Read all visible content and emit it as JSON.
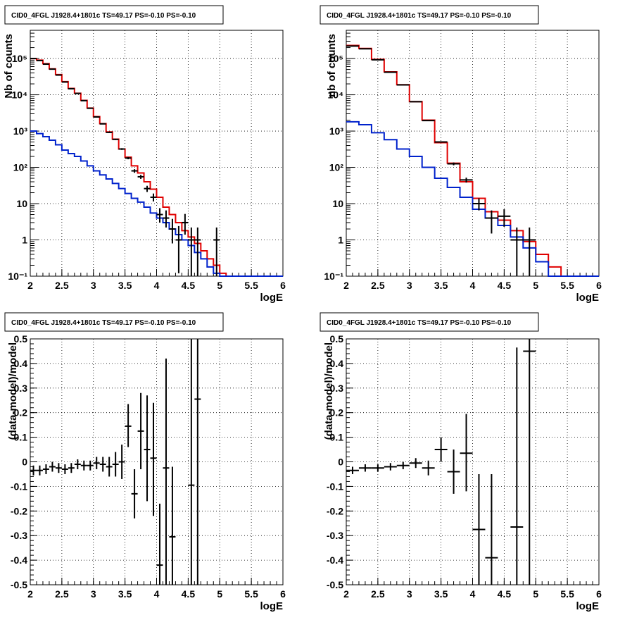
{
  "colors": {
    "data": "#000000",
    "model_total": "#e00000",
    "model_source": "#0022cc",
    "grid": "#000000"
  },
  "chart_data": [
    {
      "type": "line",
      "title": "CID0_4FGL J1928.4+1801c TS=49.17 PS=-0.10 PS=-0.10",
      "xlabel": "logE",
      "ylabel": "Nb of counts",
      "yscale": "log",
      "xlim": [
        2,
        6
      ],
      "ylim": [
        0.1,
        600000
      ],
      "xticks": [
        "2",
        "2.5",
        "3",
        "3.5",
        "4",
        "4.5",
        "5",
        "5.5",
        "6"
      ],
      "yticks": [
        "10⁻¹",
        "1",
        "10",
        "10²",
        "10³",
        "10⁴",
        "10⁵"
      ],
      "grid": true,
      "bin_edges": [
        2.0,
        2.1,
        2.2,
        2.3,
        2.4,
        2.5,
        2.6,
        2.7,
        2.8,
        2.9,
        3.0,
        3.1,
        3.2,
        3.3,
        3.4,
        3.5,
        3.6,
        3.7,
        3.8,
        3.9,
        4.0,
        4.1,
        4.2,
        4.3,
        4.4,
        4.5,
        4.6,
        4.7,
        4.8,
        4.9,
        5.0,
        5.1,
        5.2,
        5.3,
        5.4,
        5.5,
        5.6,
        5.7,
        5.8,
        5.9,
        6.0
      ],
      "series": [
        {
          "values": [
            100000,
            90000,
            72000,
            52000,
            36000,
            23000,
            15000,
            11000,
            7000,
            4300,
            2500,
            1600,
            950,
            600,
            320,
            190,
            110,
            70,
            40,
            25,
            15,
            8,
            5,
            3,
            1.8,
            1.2,
            0.8,
            0.5,
            0.3,
            0.2,
            0.12,
            0.1,
            0.1,
            0.1,
            0.1,
            0.1,
            0.1,
            0.1,
            0.1,
            0.1
          ]
        },
        {
          "values": [
            1000,
            850,
            700,
            560,
            420,
            300,
            240,
            200,
            150,
            110,
            80,
            62,
            48,
            36,
            26,
            19,
            14,
            11,
            8,
            5.5,
            4,
            3,
            2,
            1.4,
            1,
            0.7,
            0.45,
            0.3,
            0.18,
            0.12,
            0.1,
            0.1,
            0.1,
            0.1,
            0.1,
            0.1,
            0.1,
            0.1,
            0.1,
            0.1
          ]
        },
        {
          "points": [
            {
              "x": 2.05,
              "y": 100000,
              "lo": 99500,
              "hi": 100500
            },
            {
              "x": 2.15,
              "y": 88000,
              "lo": 87600,
              "hi": 88400
            },
            {
              "x": 2.25,
              "y": 70000,
              "lo": 69600,
              "hi": 70400
            },
            {
              "x": 2.35,
              "y": 51000,
              "lo": 50700,
              "hi": 51300
            },
            {
              "x": 2.45,
              "y": 35000,
              "lo": 34800,
              "hi": 35200
            },
            {
              "x": 2.55,
              "y": 22500,
              "lo": 22300,
              "hi": 22700
            },
            {
              "x": 2.65,
              "y": 14700,
              "lo": 14500,
              "hi": 14900
            },
            {
              "x": 2.75,
              "y": 10900,
              "lo": 10700,
              "hi": 11100
            },
            {
              "x": 2.85,
              "y": 6900,
              "lo": 6800,
              "hi": 7000
            },
            {
              "x": 2.95,
              "y": 4250,
              "lo": 4180,
              "hi": 4320
            },
            {
              "x": 3.05,
              "y": 2450,
              "lo": 2400,
              "hi": 2500
            },
            {
              "x": 3.15,
              "y": 1580,
              "lo": 1540,
              "hi": 1620
            },
            {
              "x": 3.25,
              "y": 920,
              "lo": 890,
              "hi": 950
            },
            {
              "x": 3.35,
              "y": 590,
              "lo": 565,
              "hi": 615
            },
            {
              "x": 3.45,
              "y": 320,
              "lo": 302,
              "hi": 338
            },
            {
              "x": 3.55,
              "y": 180,
              "lo": 167,
              "hi": 193
            },
            {
              "x": 3.65,
              "y": 80,
              "lo": 71,
              "hi": 89
            },
            {
              "x": 3.75,
              "y": 55,
              "lo": 48,
              "hi": 62
            },
            {
              "x": 3.85,
              "y": 26,
              "lo": 21,
              "hi": 31
            },
            {
              "x": 3.95,
              "y": 15,
              "lo": 11.5,
              "hi": 19
            },
            {
              "x": 4.05,
              "y": 5,
              "lo": 3,
              "hi": 7.5
            },
            {
              "x": 4.15,
              "y": 4,
              "lo": 2.2,
              "hi": 6.5
            },
            {
              "x": 4.25,
              "y": 2,
              "lo": 0.8,
              "hi": 3.8
            },
            {
              "x": 4.35,
              "y": 1,
              "lo": 0.12,
              "hi": 2.4
            },
            {
              "x": 4.45,
              "y": 3,
              "lo": 1.4,
              "hi": 5.2
            },
            {
              "x": 4.55,
              "y": 1,
              "lo": 0.1,
              "hi": 2.2
            },
            {
              "x": 4.65,
              "y": 1,
              "lo": 0.1,
              "hi": 2.2
            },
            {
              "x": 4.95,
              "y": 1,
              "lo": 0.1,
              "hi": 2.2
            }
          ]
        }
      ]
    },
    {
      "type": "line",
      "title": "CID0_4FGL J1928.4+1801c TS=49.17 PS=-0.10 PS=-0.10",
      "xlabel": "logE",
      "ylabel": "nb of counts",
      "yscale": "log",
      "xlim": [
        2,
        6
      ],
      "ylim": [
        0.1,
        600000
      ],
      "xticks": [
        "2",
        "2.5",
        "3",
        "3.5",
        "4",
        "4.5",
        "5",
        "5.5",
        "6"
      ],
      "yticks": [
        "10⁻¹",
        "1",
        "10",
        "10²",
        "10³",
        "10⁴",
        "10⁵"
      ],
      "grid": true,
      "bin_edges": [
        2.0,
        2.2,
        2.4,
        2.6,
        2.8,
        3.0,
        3.2,
        3.4,
        3.6,
        3.8,
        4.0,
        4.2,
        4.4,
        4.6,
        4.8,
        5.0,
        5.2,
        5.4,
        5.6,
        5.8,
        6.0
      ],
      "series": [
        {
          "values": [
            230000,
            190000,
            95000,
            43000,
            19000,
            6500,
            2000,
            480,
            130,
            40,
            14,
            6,
            3.5,
            1.8,
            0.9,
            0.4,
            0.18,
            0.1,
            0.1,
            0.1
          ]
        },
        {
          "values": [
            1800,
            1500,
            900,
            580,
            320,
            200,
            100,
            50,
            28,
            15,
            7,
            4,
            2.5,
            1.2,
            0.6,
            0.25,
            0.1,
            0.1,
            0.1,
            0.1
          ]
        },
        {
          "points": [
            {
              "x": 2.1,
              "y": 220000,
              "lo": 219000,
              "hi": 221000
            },
            {
              "x": 2.3,
              "y": 185000,
              "lo": 184000,
              "hi": 186000
            },
            {
              "x": 2.5,
              "y": 92000,
              "lo": 91500,
              "hi": 92500
            },
            {
              "x": 2.7,
              "y": 42000,
              "lo": 41700,
              "hi": 42300
            },
            {
              "x": 2.9,
              "y": 18700,
              "lo": 18500,
              "hi": 18900
            },
            {
              "x": 3.1,
              "y": 6450,
              "lo": 6370,
              "hi": 6530
            },
            {
              "x": 3.3,
              "y": 1950,
              "lo": 1910,
              "hi": 1990
            },
            {
              "x": 3.5,
              "y": 500,
              "lo": 478,
              "hi": 522
            },
            {
              "x": 3.7,
              "y": 125,
              "lo": 114,
              "hi": 136
            },
            {
              "x": 3.9,
              "y": 45,
              "lo": 38,
              "hi": 52
            },
            {
              "x": 4.1,
              "y": 10,
              "lo": 6.5,
              "hi": 14
            },
            {
              "x": 4.3,
              "y": 4,
              "lo": 1.5,
              "hi": 6.5
            },
            {
              "x": 4.5,
              "y": 4.5,
              "lo": 2.3,
              "hi": 7
            },
            {
              "x": 4.7,
              "y": 1,
              "lo": 0.1,
              "hi": 2.2
            },
            {
              "x": 4.9,
              "y": 1,
              "lo": 0.1,
              "hi": 2.2
            }
          ]
        }
      ]
    },
    {
      "type": "scatter",
      "title": "CID0_4FGL J1928.4+1801c TS=49.17 PS=-0.10 PS=-0.10",
      "xlabel": "logE",
      "ylabel": "(data-model)/model",
      "xlim": [
        2,
        6
      ],
      "ylim": [
        -0.5,
        0.5
      ],
      "xticks": [
        "2",
        "2.5",
        "3",
        "3.5",
        "4",
        "4.5",
        "5",
        "5.5",
        "6"
      ],
      "yticks": [
        "-0.5",
        "-0.4",
        "-0.3",
        "-0.2",
        "-0.1",
        "0",
        "0.1",
        "0.2",
        "0.3",
        "0.4",
        "0.5"
      ],
      "grid": true,
      "x_halfwidth": 0.05,
      "points": [
        {
          "x": 2.05,
          "y": -0.035,
          "lo": -0.055,
          "hi": -0.015
        },
        {
          "x": 2.15,
          "y": -0.035,
          "lo": -0.055,
          "hi": -0.015
        },
        {
          "x": 2.25,
          "y": -0.03,
          "lo": -0.05,
          "hi": -0.01
        },
        {
          "x": 2.35,
          "y": -0.02,
          "lo": -0.04,
          "hi": 0.0
        },
        {
          "x": 2.45,
          "y": -0.025,
          "lo": -0.045,
          "hi": -0.005
        },
        {
          "x": 2.55,
          "y": -0.03,
          "lo": -0.05,
          "hi": -0.01
        },
        {
          "x": 2.65,
          "y": -0.025,
          "lo": -0.045,
          "hi": -0.005
        },
        {
          "x": 2.75,
          "y": -0.01,
          "lo": -0.03,
          "hi": 0.01
        },
        {
          "x": 2.85,
          "y": -0.015,
          "lo": -0.035,
          "hi": 0.005
        },
        {
          "x": 2.95,
          "y": -0.015,
          "lo": -0.035,
          "hi": 0.005
        },
        {
          "x": 3.05,
          "y": -0.005,
          "lo": -0.03,
          "hi": 0.02
        },
        {
          "x": 3.15,
          "y": -0.01,
          "lo": -0.04,
          "hi": 0.02
        },
        {
          "x": 3.25,
          "y": -0.02,
          "lo": -0.06,
          "hi": 0.02
        },
        {
          "x": 3.35,
          "y": -0.01,
          "lo": -0.06,
          "hi": 0.04
        },
        {
          "x": 3.45,
          "y": 0.0,
          "lo": -0.07,
          "hi": 0.07
        },
        {
          "x": 3.55,
          "y": 0.145,
          "lo": 0.06,
          "hi": 0.235
        },
        {
          "x": 3.65,
          "y": -0.13,
          "lo": -0.23,
          "hi": -0.03
        },
        {
          "x": 3.75,
          "y": 0.125,
          "lo": -0.03,
          "hi": 0.28
        },
        {
          "x": 3.85,
          "y": 0.05,
          "lo": -0.16,
          "hi": 0.27
        },
        {
          "x": 3.95,
          "y": 0.015,
          "lo": -0.22,
          "hi": 0.24
        },
        {
          "x": 4.05,
          "y": -0.42,
          "lo": -0.5,
          "hi": -0.17
        },
        {
          "x": 4.15,
          "y": -0.025,
          "lo": -0.5,
          "hi": 0.42
        },
        {
          "x": 4.25,
          "y": -0.305,
          "lo": -0.5,
          "hi": -0.02
        },
        {
          "x": 4.55,
          "y": -0.095,
          "lo": -0.5,
          "hi": 0.5
        },
        {
          "x": 4.65,
          "y": 0.255,
          "lo": -0.5,
          "hi": 0.5
        }
      ]
    },
    {
      "type": "scatter",
      "title": "CID0_4FGL J1928.4+1801c TS=49.17 PS=-0.10 PS=-0.10",
      "xlabel": "logE",
      "ylabel": "(data-model)/model",
      "xlim": [
        2,
        6
      ],
      "ylim": [
        -0.5,
        0.5
      ],
      "xticks": [
        "2",
        "2.5",
        "3",
        "3.5",
        "4",
        "4.5",
        "5",
        "5.5",
        "6"
      ],
      "yticks": [
        "-0.5",
        "-0.4",
        "-0.3",
        "-0.2",
        "-0.1",
        "0",
        "0.1",
        "0.2",
        "0.3",
        "0.4",
        "0.5"
      ],
      "grid": true,
      "x_halfwidth": 0.1,
      "points": [
        {
          "x": 2.1,
          "y": -0.035,
          "lo": -0.05,
          "hi": -0.02
        },
        {
          "x": 2.3,
          "y": -0.025,
          "lo": -0.04,
          "hi": -0.01
        },
        {
          "x": 2.5,
          "y": -0.025,
          "lo": -0.04,
          "hi": -0.01
        },
        {
          "x": 2.7,
          "y": -0.02,
          "lo": -0.035,
          "hi": -0.005
        },
        {
          "x": 2.9,
          "y": -0.015,
          "lo": -0.03,
          "hi": 0.0
        },
        {
          "x": 3.1,
          "y": -0.005,
          "lo": -0.025,
          "hi": 0.015
        },
        {
          "x": 3.3,
          "y": -0.025,
          "lo": -0.055,
          "hi": 0.005
        },
        {
          "x": 3.5,
          "y": 0.05,
          "lo": 0.0,
          "hi": 0.1
        },
        {
          "x": 3.7,
          "y": -0.04,
          "lo": -0.13,
          "hi": 0.05
        },
        {
          "x": 3.9,
          "y": 0.035,
          "lo": -0.12,
          "hi": 0.195
        },
        {
          "x": 4.1,
          "y": -0.275,
          "lo": -0.5,
          "hi": -0.05
        },
        {
          "x": 4.3,
          "y": -0.39,
          "lo": -0.5,
          "hi": -0.05
        },
        {
          "x": 4.7,
          "y": -0.265,
          "lo": -0.5,
          "hi": 0.465
        },
        {
          "x": 4.9,
          "y": 0.45,
          "lo": -0.5,
          "hi": 0.5
        }
      ]
    }
  ]
}
